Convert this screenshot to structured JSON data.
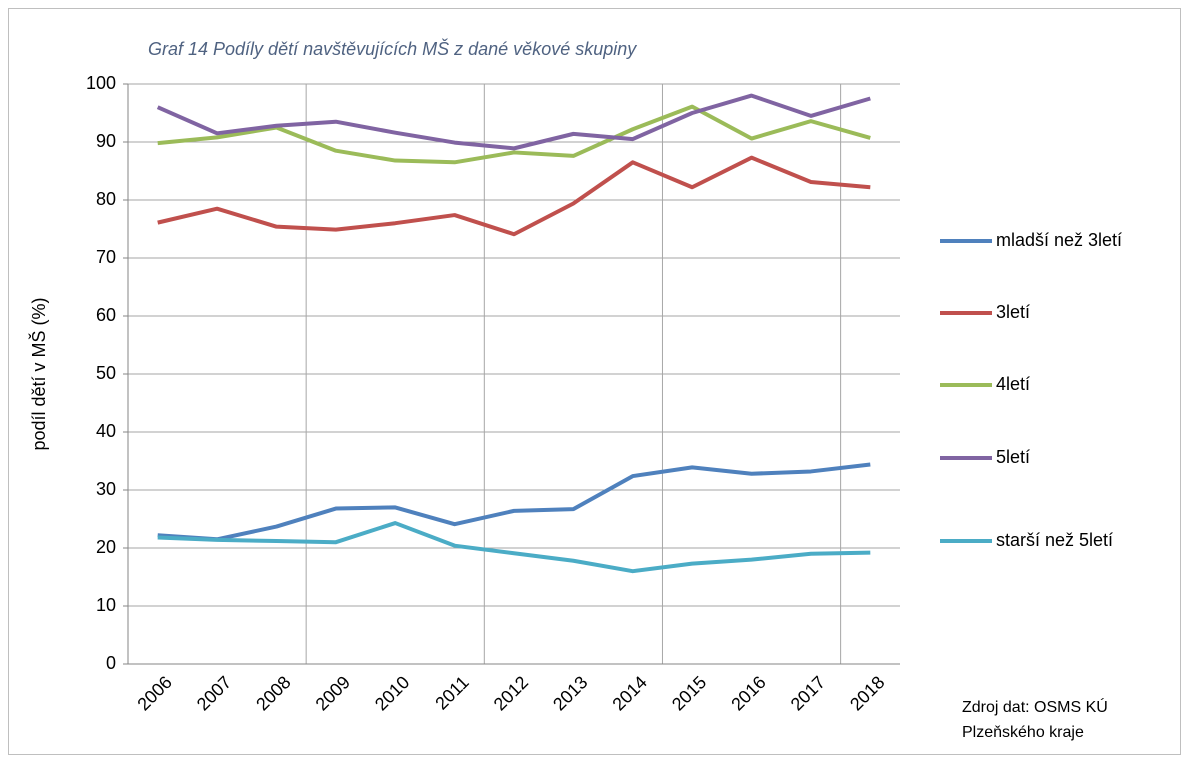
{
  "chart_data": {
    "type": "line",
    "title": "Graf 14 Podíly dětí navštěvujících MŠ z dané věkové skupiny",
    "y_label": "podíl dětí v MŠ (%)",
    "source": [
      "Zdroj dat: OSMS KÚ",
      "Plzeňského kraje"
    ],
    "categories": [
      "2006",
      "2007",
      "2008",
      "2009",
      "2010",
      "2011",
      "2012",
      "2013",
      "2014",
      "2015",
      "2016",
      "2017",
      "2018"
    ],
    "series": [
      {
        "name": "mladší než 3letí",
        "color": "#4f81bd",
        "values": [
          22.2,
          21.5,
          23.7,
          26.8,
          27.0,
          24.1,
          26.4,
          26.7,
          32.4,
          33.9,
          32.8,
          33.2,
          34.4
        ]
      },
      {
        "name": "3letí",
        "color": "#c0504d",
        "values": [
          76.1,
          78.5,
          75.4,
          74.9,
          76.0,
          77.4,
          74.1,
          79.4,
          86.5,
          82.2,
          87.3,
          83.1,
          82.2
        ]
      },
      {
        "name": "4letí",
        "color": "#9bbb59",
        "values": [
          89.8,
          90.8,
          92.5,
          88.5,
          86.8,
          86.5,
          88.2,
          87.6,
          92.2,
          96.1,
          90.6,
          93.6,
          90.7
        ]
      },
      {
        "name": "5letí",
        "color": "#8064a2",
        "values": [
          96.0,
          91.5,
          92.8,
          93.5,
          91.6,
          89.9,
          88.9,
          91.4,
          90.5,
          95.0,
          98.0,
          94.5,
          97.5
        ]
      },
      {
        "name": "starší než 5letí",
        "color": "#4bacc6",
        "values": [
          21.8,
          21.4,
          21.2,
          21.0,
          24.3,
          20.4,
          19.1,
          17.8,
          16.0,
          17.3,
          18.0,
          19.0,
          19.2
        ]
      }
    ],
    "ylim": [
      0,
      100
    ],
    "yticks": [
      0,
      10,
      20,
      30,
      40,
      50,
      60,
      70,
      80,
      90,
      100
    ],
    "grid": true,
    "legend": "right"
  }
}
